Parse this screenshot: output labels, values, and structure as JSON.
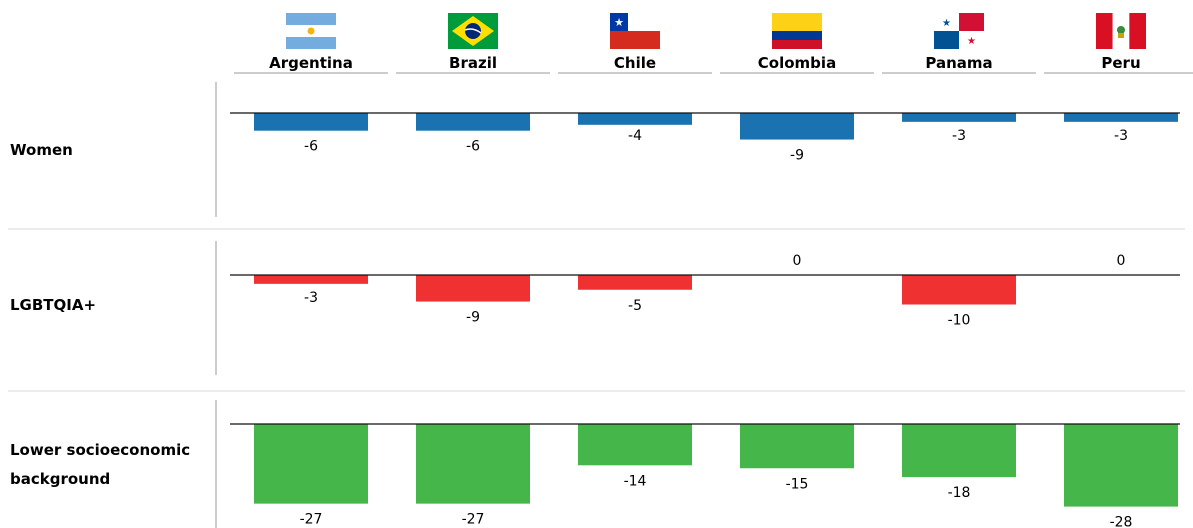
{
  "chart_data": {
    "type": "bar",
    "categories": [
      "Argentina",
      "Brazil",
      "Chile",
      "Colombia",
      "Panama",
      "Peru"
    ],
    "flags": [
      "argentina-flag-icon",
      "brazil-flag-icon",
      "chile-flag-icon",
      "colombia-flag-icon",
      "panama-flag-icon",
      "peru-flag-icon"
    ],
    "series": [
      {
        "name": "Women",
        "color": "#1a73b0",
        "values": [
          -6,
          -6,
          -4,
          -9,
          -3,
          -3
        ]
      },
      {
        "name": "LGBTQIA+",
        "color": "#ef3131",
        "values": [
          -3,
          -9,
          -5,
          0,
          -10,
          0
        ]
      },
      {
        "name": "Lower socioeconomic background",
        "color": "#45b649",
        "values": [
          -27,
          -27,
          -14,
          -15,
          -18,
          -28
        ]
      }
    ],
    "ylim": [
      -30,
      0
    ]
  }
}
